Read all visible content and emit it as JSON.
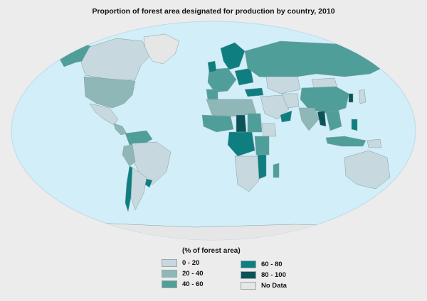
{
  "title": "Proportion of forest area designated for production by country, 2010",
  "legend": {
    "title": "(% of forest area)",
    "items": [
      {
        "label": "0 - 20",
        "color": "#c7d9de"
      },
      {
        "label": "20 - 40",
        "color": "#8fb7b8"
      },
      {
        "label": "40 - 60",
        "color": "#4f9e9a"
      },
      {
        "label": "60 - 80",
        "color": "#0e7e80"
      },
      {
        "label": "80 - 100",
        "color": "#0b5356"
      },
      {
        "label": "No Data",
        "color": "#e6e6e6"
      }
    ]
  },
  "colors": {
    "ocean": "#d2eef8",
    "background": "#ececec"
  }
}
